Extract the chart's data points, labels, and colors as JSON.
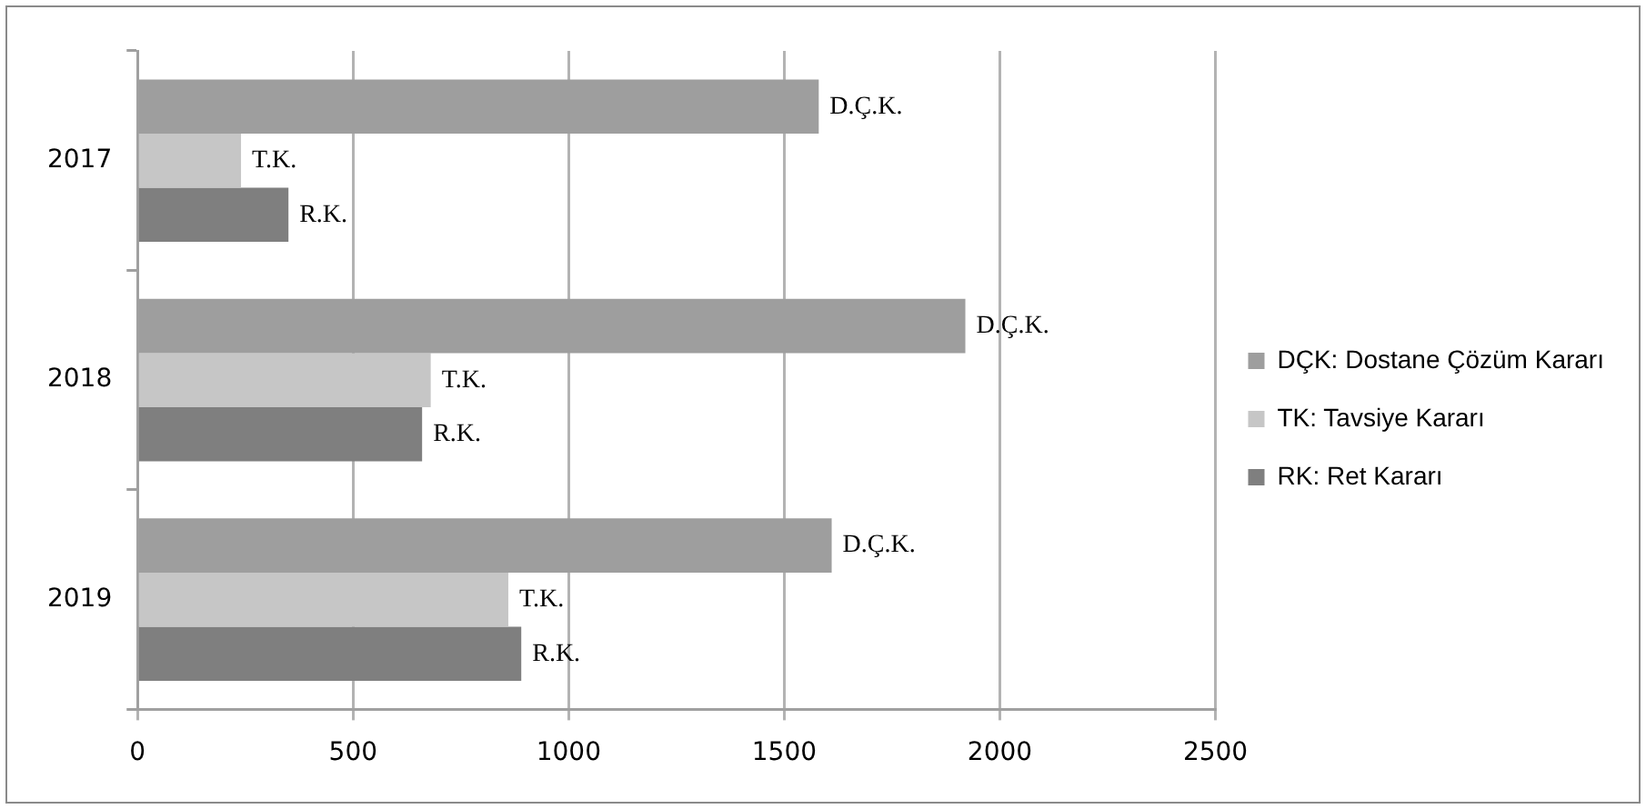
{
  "chart_data": {
    "type": "bar",
    "orientation": "horizontal",
    "categories": [
      "2017",
      "2018",
      "2019"
    ],
    "series": [
      {
        "name": "DÇK: Dostane Çözüm Kararı",
        "color": "#9e9e9e",
        "values": [
          1580,
          1920,
          1610
        ],
        "value_labels": [
          "D.Ç.K.",
          "D.Ç.K.",
          "D.Ç.K."
        ]
      },
      {
        "name": "TK: Tavsiye Kararı",
        "color": "#c6c6c6",
        "values": [
          240,
          680,
          860
        ],
        "value_labels": [
          "T.K.",
          "T.K.",
          "T.K."
        ]
      },
      {
        "name": "RK: Ret Kararı",
        "color": "#7f7f7f",
        "values": [
          350,
          660,
          890
        ],
        "value_labels": [
          "R.K.",
          "R.K.",
          "R.K."
        ]
      }
    ],
    "xlim": [
      0,
      2500
    ],
    "xticks": [
      0,
      500,
      1000,
      1500,
      2000,
      2500
    ],
    "grid": "x",
    "legend": "right"
  }
}
